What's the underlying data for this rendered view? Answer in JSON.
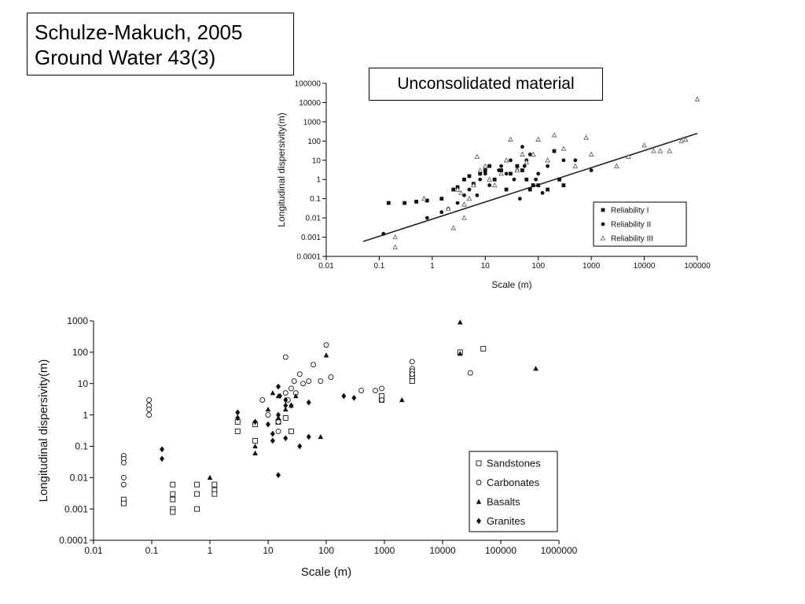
{
  "citation": {
    "line1": "Schulze-Makuch, 2005",
    "line2": "Ground Water 43(3)"
  },
  "chart_data": [
    {
      "type": "scatter",
      "subtitle": "Unconsolidated material",
      "xlabel": "Scale (m)",
      "ylabel": "Longitudinal dispersivity(m)",
      "x_scale": "log",
      "y_scale": "log",
      "xlim": [
        0.01,
        100000
      ],
      "ylim": [
        0.0001,
        100000
      ],
      "x_ticks": [
        "0.01",
        "0.1",
        "1",
        "10",
        "100",
        "1000",
        "10000",
        "100000"
      ],
      "y_ticks": [
        "0.0001",
        "0.001",
        "0.01",
        "0.1",
        "1",
        "10",
        "100",
        "1000",
        "10000",
        "100000"
      ],
      "grid": false,
      "legend_position": "bottom-right",
      "regression_line": {
        "x": [
          0.05,
          100000
        ],
        "y": [
          0.0006,
          250
        ]
      },
      "series": [
        {
          "name": "Reliability I",
          "marker": "square",
          "points": [
            [
              0.15,
              0.06
            ],
            [
              0.3,
              0.06
            ],
            [
              0.5,
              0.07
            ],
            [
              0.8,
              0.08
            ],
            [
              1.5,
              0.1
            ],
            [
              2.5,
              0.3
            ],
            [
              3,
              0.4
            ],
            [
              4,
              1
            ],
            [
              5,
              1.5
            ],
            [
              6,
              0.6
            ],
            [
              8,
              2
            ],
            [
              10,
              3
            ],
            [
              12,
              5
            ],
            [
              15,
              1
            ],
            [
              20,
              3
            ],
            [
              25,
              0.3
            ],
            [
              30,
              2
            ],
            [
              40,
              5
            ],
            [
              50,
              3
            ],
            [
              60,
              1
            ],
            [
              70,
              0.3
            ],
            [
              80,
              0.5
            ],
            [
              100,
              0.5
            ],
            [
              150,
              0.3
            ],
            [
              200,
              30
            ],
            [
              250,
              1
            ],
            [
              300,
              0.5
            ]
          ]
        },
        {
          "name": "Reliability II",
          "marker": "circle",
          "points": [
            [
              0.12,
              0.0015
            ],
            [
              0.8,
              0.01
            ],
            [
              1.5,
              0.02
            ],
            [
              2,
              0.03
            ],
            [
              3,
              0.06
            ],
            [
              4,
              0.15
            ],
            [
              5,
              0.3
            ],
            [
              6,
              0.5
            ],
            [
              7,
              0.15
            ],
            [
              8,
              1
            ],
            [
              10,
              2
            ],
            [
              12,
              0.5
            ],
            [
              15,
              1
            ],
            [
              18,
              3
            ],
            [
              20,
              5
            ],
            [
              25,
              2
            ],
            [
              30,
              10
            ],
            [
              35,
              1
            ],
            [
              40,
              3
            ],
            [
              45,
              0.1
            ],
            [
              50,
              50
            ],
            [
              55,
              5
            ],
            [
              60,
              10
            ],
            [
              70,
              20
            ],
            [
              80,
              0.5
            ],
            [
              90,
              1
            ],
            [
              100,
              2
            ],
            [
              120,
              0.2
            ],
            [
              150,
              5
            ],
            [
              200,
              30
            ],
            [
              300,
              10
            ],
            [
              500,
              10
            ],
            [
              1000,
              3
            ]
          ]
        },
        {
          "name": "Reliability III",
          "marker": "triangle",
          "points": [
            [
              0.2,
              0.001
            ],
            [
              0.2,
              0.0003
            ],
            [
              0.7,
              0.1
            ],
            [
              2,
              0.03
            ],
            [
              2.5,
              0.003
            ],
            [
              3,
              0.3
            ],
            [
              3.5,
              0.2
            ],
            [
              4,
              0.05
            ],
            [
              4,
              0.01
            ],
            [
              5,
              0.1
            ],
            [
              6,
              0.5
            ],
            [
              7,
              15
            ],
            [
              8,
              3
            ],
            [
              10,
              5
            ],
            [
              12,
              1
            ],
            [
              15,
              0.5
            ],
            [
              20,
              2
            ],
            [
              25,
              10
            ],
            [
              30,
              120
            ],
            [
              40,
              3
            ],
            [
              50,
              20
            ],
            [
              60,
              8
            ],
            [
              80,
              20
            ],
            [
              100,
              120
            ],
            [
              150,
              10
            ],
            [
              200,
              200
            ],
            [
              300,
              40
            ],
            [
              500,
              5
            ],
            [
              800,
              150
            ],
            [
              1000,
              20
            ],
            [
              3000,
              5
            ],
            [
              5000,
              15
            ],
            [
              10000,
              60
            ],
            [
              15000,
              30
            ],
            [
              20000,
              30
            ],
            [
              30000,
              30
            ],
            [
              50000,
              100
            ],
            [
              60000,
              120
            ],
            [
              100000,
              15000
            ]
          ]
        }
      ]
    },
    {
      "type": "scatter",
      "xlabel": "Scale (m)",
      "ylabel": "Longitudinal dispersivity(m)",
      "x_scale": "log",
      "y_scale": "log",
      "xlim": [
        0.01,
        1000000
      ],
      "ylim": [
        0.0001,
        1000
      ],
      "x_ticks": [
        "0.01",
        "0.1",
        "1",
        "10",
        "100",
        "1000",
        "10000",
        "100000",
        "1000000"
      ],
      "y_ticks": [
        "0.0001",
        "0.001",
        "0.01",
        "0.1",
        "1",
        "10",
        "100",
        "1000"
      ],
      "grid": false,
      "legend_position": "bottom-right",
      "series": [
        {
          "name": "Sandstones",
          "marker": "square-open",
          "points": [
            [
              0.033,
              0.002
            ],
            [
              0.033,
              0.0015
            ],
            [
              0.23,
              0.006
            ],
            [
              0.23,
              0.003
            ],
            [
              0.23,
              0.002
            ],
            [
              0.23,
              0.001
            ],
            [
              0.23,
              0.0008
            ],
            [
              0.6,
              0.006
            ],
            [
              0.6,
              0.003
            ],
            [
              0.6,
              0.001
            ],
            [
              1.2,
              0.006
            ],
            [
              1.2,
              0.004
            ],
            [
              1.2,
              0.003
            ],
            [
              3,
              0.6
            ],
            [
              3,
              0.3
            ],
            [
              6,
              0.15
            ],
            [
              6,
              0.5
            ],
            [
              15,
              0.6
            ],
            [
              20,
              0.8
            ],
            [
              25,
              0.3
            ],
            [
              900,
              3
            ],
            [
              900,
              4
            ],
            [
              3000,
              20
            ],
            [
              3000,
              15
            ],
            [
              3000,
              12
            ],
            [
              20000,
              100
            ],
            [
              50000,
              130
            ]
          ]
        },
        {
          "name": "Carbonates",
          "marker": "circle-open",
          "points": [
            [
              0.033,
              0.05
            ],
            [
              0.033,
              0.04
            ],
            [
              0.033,
              0.03
            ],
            [
              0.033,
              0.01
            ],
            [
              0.033,
              0.006
            ],
            [
              0.09,
              3
            ],
            [
              0.09,
              2
            ],
            [
              0.09,
              1.5
            ],
            [
              0.09,
              1
            ],
            [
              8,
              3
            ],
            [
              10,
              1
            ],
            [
              15,
              0.6
            ],
            [
              15,
              0.3
            ],
            [
              20,
              70
            ],
            [
              20,
              5
            ],
            [
              22,
              3
            ],
            [
              25,
              7
            ],
            [
              28,
              12
            ],
            [
              30,
              5
            ],
            [
              35,
              20
            ],
            [
              40,
              10
            ],
            [
              50,
              12
            ],
            [
              60,
              40
            ],
            [
              80,
              12
            ],
            [
              100,
              170
            ],
            [
              120,
              16
            ],
            [
              700,
              6
            ],
            [
              400,
              6
            ],
            [
              900,
              3
            ],
            [
              900,
              7
            ],
            [
              3000,
              50
            ],
            [
              3000,
              30
            ],
            [
              3000,
              25
            ],
            [
              3000,
              20
            ],
            [
              30000,
              22
            ]
          ]
        },
        {
          "name": "Basalts",
          "marker": "triangle",
          "points": [
            [
              1,
              0.01
            ],
            [
              6,
              0.1
            ],
            [
              6,
              0.06
            ],
            [
              10,
              1.5
            ],
            [
              12,
              5
            ],
            [
              15,
              4
            ],
            [
              15,
              0.8
            ],
            [
              20,
              1.5
            ],
            [
              25,
              2
            ],
            [
              30,
              4
            ],
            [
              80,
              0.2
            ],
            [
              100,
              80
            ],
            [
              2000,
              3
            ],
            [
              20000,
              900
            ],
            [
              20000,
              90
            ],
            [
              400000,
              30
            ]
          ]
        },
        {
          "name": "Granites",
          "marker": "diamond",
          "points": [
            [
              0.15,
              0.08
            ],
            [
              0.15,
              0.04
            ],
            [
              3,
              1.2
            ],
            [
              3,
              0.8
            ],
            [
              6,
              0.6
            ],
            [
              10,
              0.5
            ],
            [
              12,
              0.25
            ],
            [
              12,
              0.15
            ],
            [
              15,
              1
            ],
            [
              15,
              8
            ],
            [
              15,
              0.012
            ],
            [
              16,
              4
            ],
            [
              20,
              3
            ],
            [
              20,
              2
            ],
            [
              20,
              0.18
            ],
            [
              25,
              2
            ],
            [
              35,
              0.1
            ],
            [
              50,
              2.5
            ],
            [
              50,
              0.2
            ],
            [
              200,
              4
            ],
            [
              300,
              3.5
            ]
          ]
        }
      ]
    }
  ]
}
